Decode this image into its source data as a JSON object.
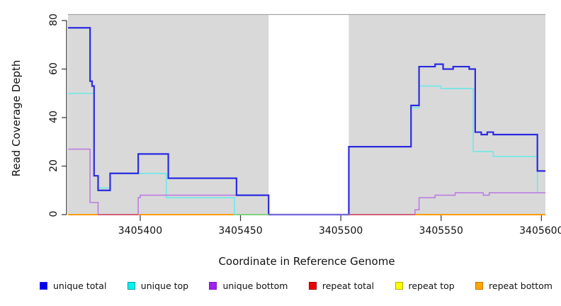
{
  "chart_data": {
    "type": "line",
    "step": true,
    "title": "",
    "xlabel": "Coordinate in Reference Genome",
    "ylabel": "Read Coverage Depth",
    "xlim": [
      3405364,
      3405602
    ],
    "ylim": [
      0,
      84
    ],
    "x_ticks": [
      3405400,
      3405450,
      3405500,
      3405550,
      3405600
    ],
    "y_ticks": [
      0,
      20,
      40,
      60,
      80
    ],
    "panel_color": "#D9D9D9",
    "panel_border_color": "#A6A6A6",
    "masked_region": {
      "from": 3405464,
      "to": 3405504,
      "color": "#FFFFFF"
    },
    "series": [
      {
        "name": "repeat top",
        "color": "#F2F200",
        "width": 1.4,
        "steps": [
          [
            3405364,
            0
          ]
        ]
      },
      {
        "name": "repeat total",
        "color": "#DD2222",
        "width": 1.4,
        "steps": [
          [
            3405364,
            0
          ]
        ]
      },
      {
        "name": "repeat bottom",
        "color": "#FF9D00",
        "width": 2,
        "steps": [
          [
            3405364,
            0
          ]
        ]
      },
      {
        "name": "unique top",
        "color": "#6FE8E8",
        "width": 1.6,
        "steps": [
          [
            3405364,
            50
          ],
          [
            3405377,
            16
          ],
          [
            3405379,
            11
          ],
          [
            3405385,
            17
          ],
          [
            3405413,
            7
          ],
          [
            3405447,
            0
          ],
          [
            3405504,
            28
          ],
          [
            3405535,
            44
          ],
          [
            3405539,
            53
          ],
          [
            3405550,
            52
          ],
          [
            3405566,
            26
          ],
          [
            3405576,
            24
          ],
          [
            3405598,
            9
          ]
        ]
      },
      {
        "name": "unique bottom",
        "color": "#BD7DE3",
        "width": 1.6,
        "steps": [
          [
            3405364,
            27
          ],
          [
            3405375,
            5
          ],
          [
            3405379,
            0
          ],
          [
            3405399,
            7
          ],
          [
            3405400,
            8
          ],
          [
            3405464,
            0
          ],
          [
            3405537,
            2
          ],
          [
            3405539,
            7
          ],
          [
            3405547,
            8
          ],
          [
            3405557,
            9
          ],
          [
            3405571,
            8
          ],
          [
            3405574,
            9
          ]
        ]
      },
      {
        "name": "unique total",
        "color": "#2B2BE0",
        "width": 2.2,
        "steps": [
          [
            3405364,
            77
          ],
          [
            3405375,
            55
          ],
          [
            3405376,
            53
          ],
          [
            3405377,
            16
          ],
          [
            3405379,
            10
          ],
          [
            3405385,
            17
          ],
          [
            3405399,
            25
          ],
          [
            3405414,
            15
          ],
          [
            3405448,
            8
          ],
          [
            3405464,
            0
          ],
          [
            3405504,
            28
          ],
          [
            3405535,
            45
          ],
          [
            3405539,
            61
          ],
          [
            3405547,
            62
          ],
          [
            3405551,
            60
          ],
          [
            3405556,
            61
          ],
          [
            3405564,
            60
          ],
          [
            3405567,
            34
          ],
          [
            3405570,
            33
          ],
          [
            3405573,
            34
          ],
          [
            3405576,
            33
          ],
          [
            3405598,
            18
          ]
        ]
      }
    ],
    "baseline_overlays": [
      {
        "from": 3405379,
        "to": 3405399,
        "color": "#CF6278"
      },
      {
        "from": 3405448,
        "to": 3405464,
        "color": "#7FD27F"
      },
      {
        "from": 3405464,
        "to": 3405504,
        "color": "#7A6AD8"
      },
      {
        "from": 3405504,
        "to": 3405537,
        "color": "#CF6278"
      }
    ]
  },
  "legend": {
    "items": [
      {
        "label": "unique total",
        "color": "#0000EE",
        "border": "#2B2BE0"
      },
      {
        "label": "unique top",
        "color": "#00F2F2",
        "border": "#00A0A0"
      },
      {
        "label": "unique bottom",
        "color": "#A020F0",
        "border": "#7A1FB8"
      },
      {
        "label": "repeat total",
        "color": "#EE0000",
        "border": "#990000"
      },
      {
        "label": "repeat top",
        "color": "#FFFF00",
        "border": "#B0B000"
      },
      {
        "label": "repeat bottom",
        "color": "#FFA500",
        "border": "#C07800"
      }
    ]
  }
}
